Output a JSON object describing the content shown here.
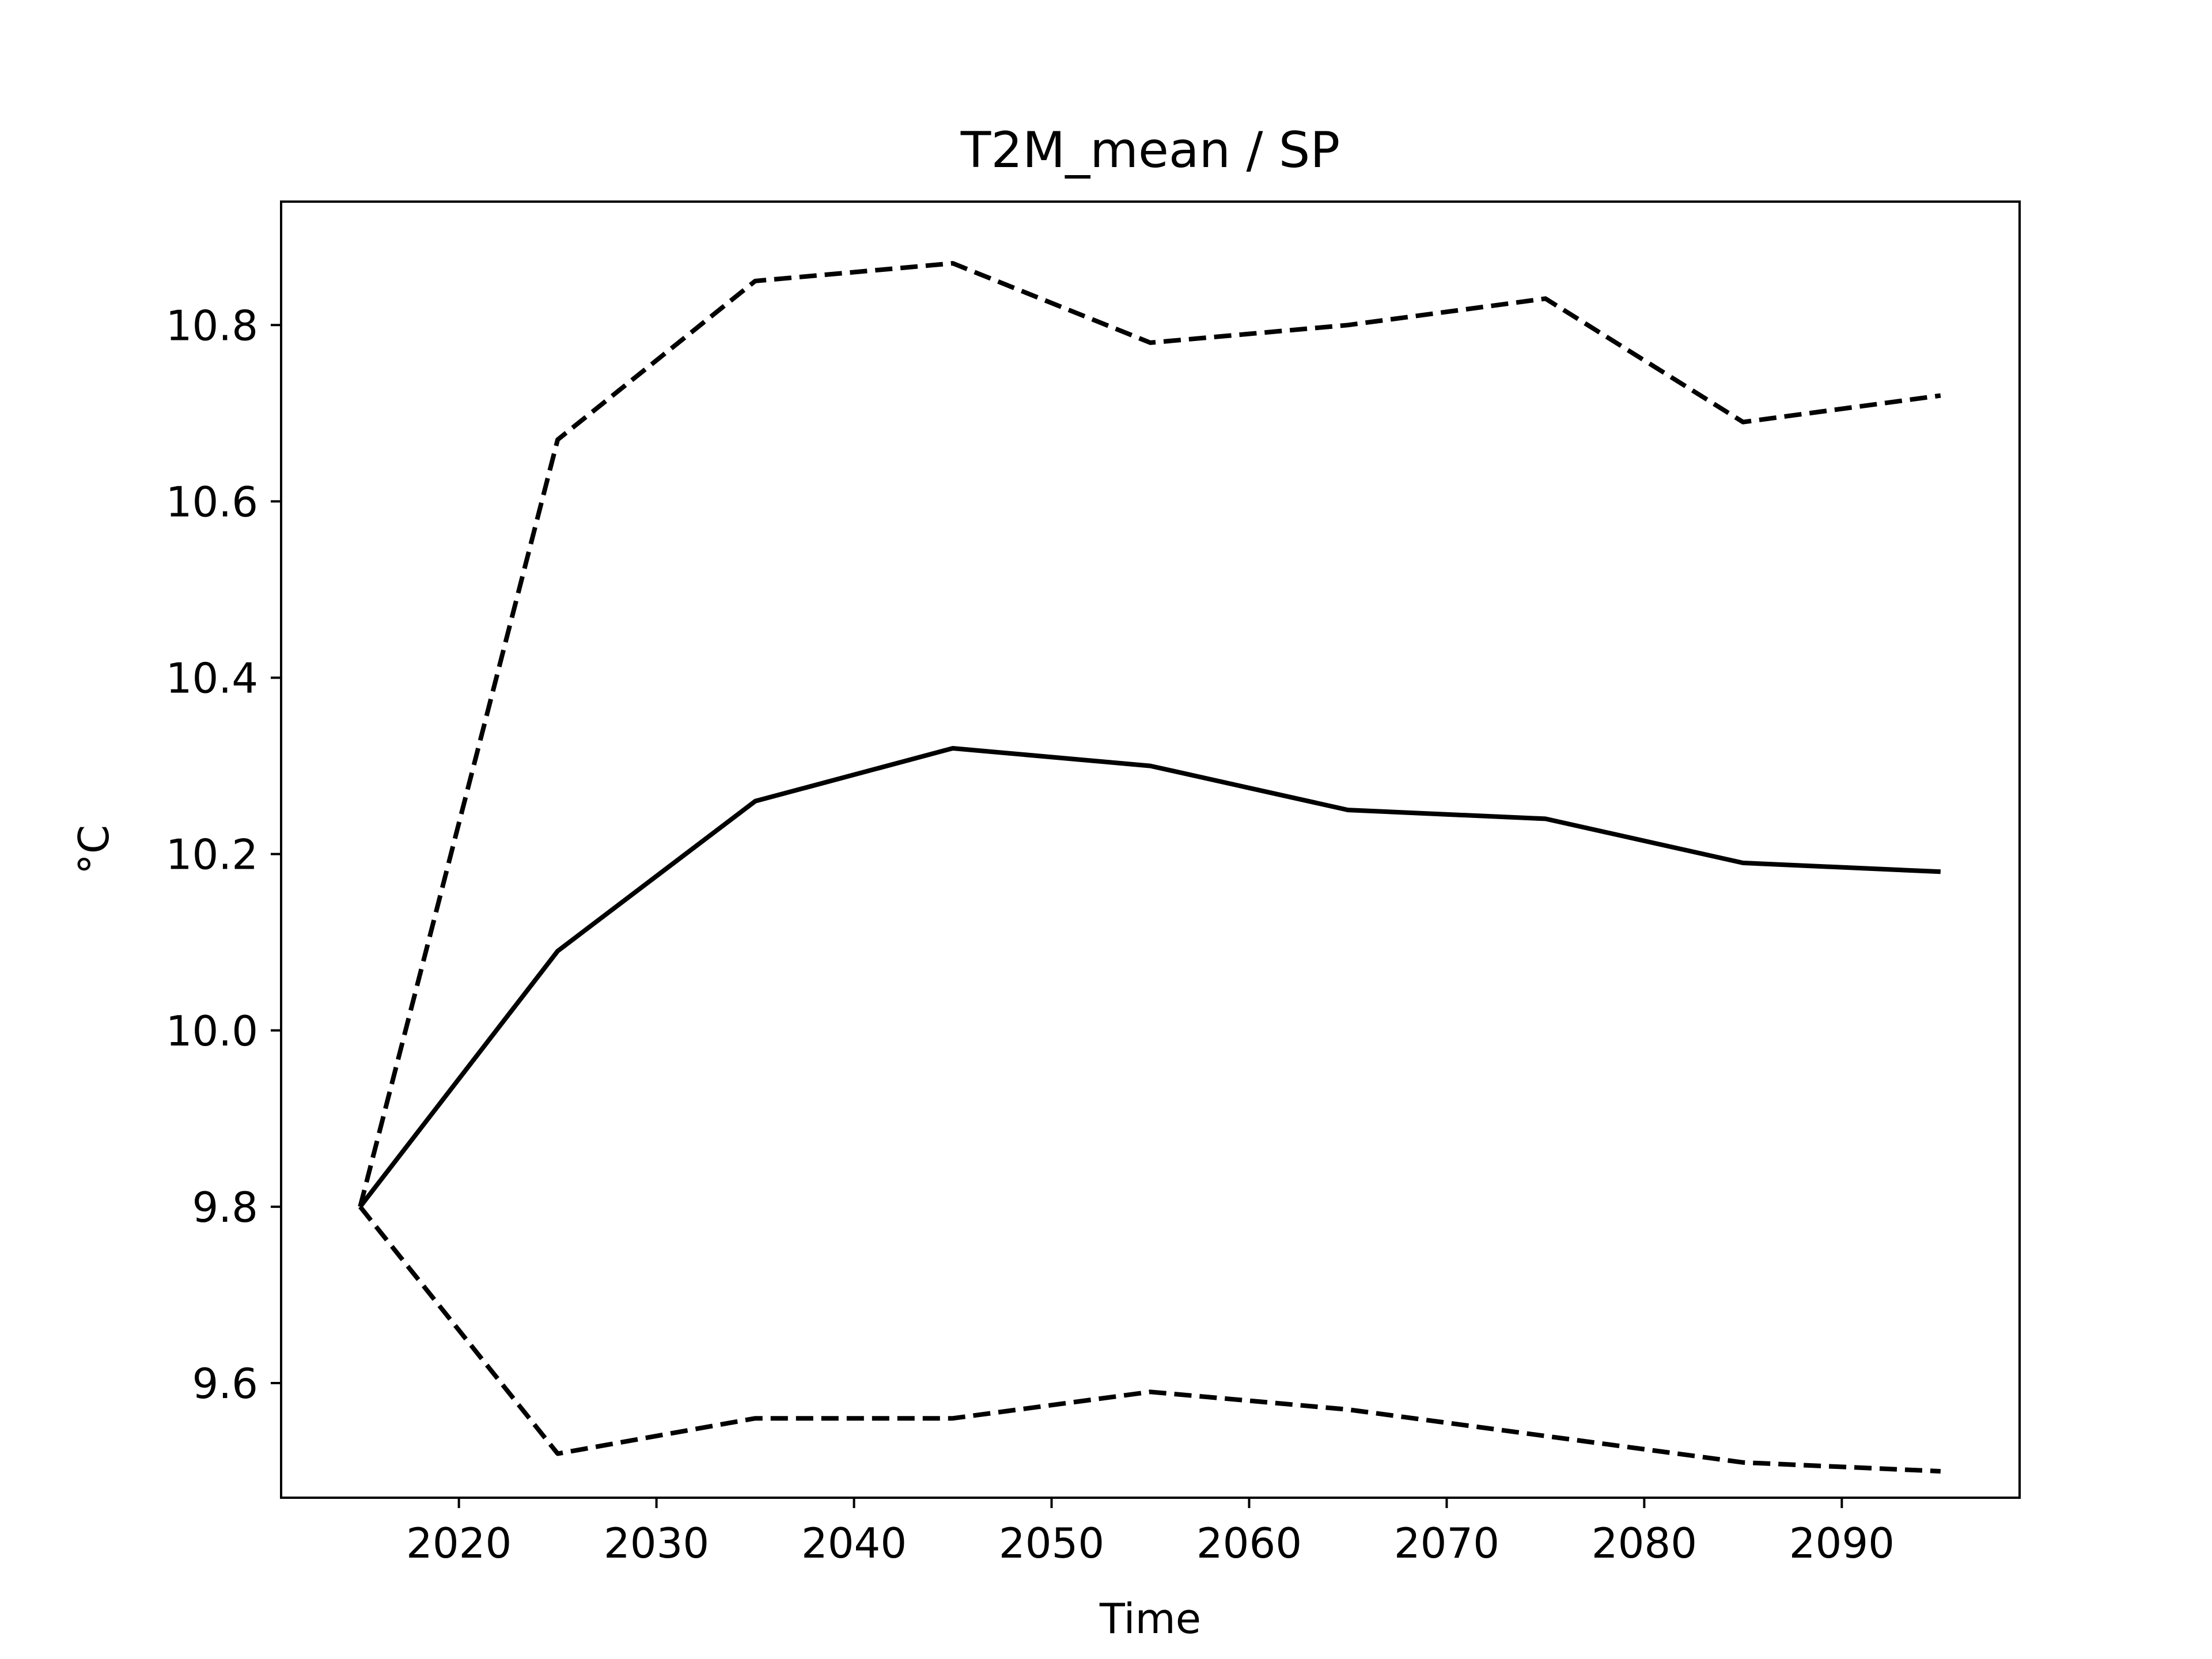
{
  "chart_data": {
    "type": "line",
    "title": "T2M_mean / SP",
    "xlabel": "Time",
    "ylabel": "°C",
    "xlim": [
      2011,
      2099
    ],
    "ylim": [
      9.47,
      10.94
    ],
    "xticks": [
      2020,
      2030,
      2040,
      2050,
      2060,
      2070,
      2080,
      2090
    ],
    "yticks": [
      9.6,
      9.8,
      10.0,
      10.2,
      10.4,
      10.6,
      10.8
    ],
    "grid": false,
    "legend": "none",
    "x": [
      2015,
      2025,
      2035,
      2045,
      2055,
      2065,
      2075,
      2085,
      2095
    ],
    "series": [
      {
        "style": "solid",
        "color": "#000000",
        "values": [
          9.8,
          10.09,
          10.26,
          10.32,
          10.3,
          10.25,
          10.24,
          10.19,
          10.18
        ]
      },
      {
        "style": "dashed",
        "color": "#000000",
        "values": [
          9.8,
          10.67,
          10.85,
          10.87,
          10.78,
          10.8,
          10.83,
          10.69,
          10.72
        ]
      },
      {
        "style": "dashed",
        "color": "#000000",
        "values": [
          9.8,
          9.52,
          9.56,
          9.56,
          9.59,
          9.57,
          9.54,
          9.51,
          9.5
        ]
      }
    ]
  }
}
